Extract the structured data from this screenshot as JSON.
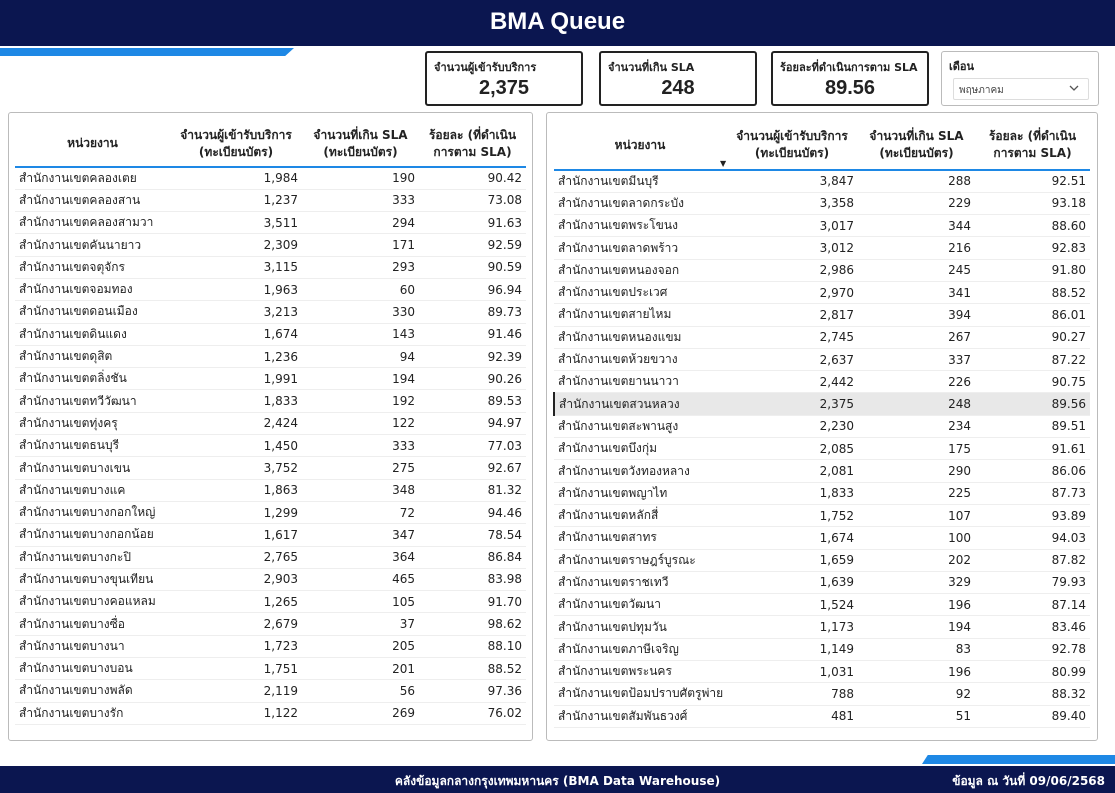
{
  "header": {
    "title": "BMA Queue"
  },
  "cards": {
    "served": {
      "label": "จำนวนผู้เข้ารับบริการ",
      "value": "2,375"
    },
    "over_sla": {
      "label": "จำนวนที่เกิน SLA",
      "value": "248"
    },
    "percent": {
      "label": "ร้อยละที่ดำเนินการตาม SLA",
      "value": "89.56"
    }
  },
  "filter": {
    "label": "เดือน",
    "value": "พฤษภาคม",
    "icon": "chevron-down-icon"
  },
  "table_headers": {
    "unit": "หน่วยงาน",
    "served_l1": "จำนวนผู้เข้ารับบริการ",
    "served_l2": "(ทะเบียนบัตร)",
    "over_l1": "จำนวนที่เกิน SLA",
    "over_l2": "(ทะเบียนบัตร)",
    "pct_l1": "ร้อยละ (ที่ดำเนิน",
    "pct_l2": "การตาม SLA)",
    "sort_indicator": "▼"
  },
  "left_table": {
    "rows": [
      [
        "สำนักงานเขตคลองเตย",
        "1,984",
        "190",
        "90.42"
      ],
      [
        "สำนักงานเขตคลองสาน",
        "1,237",
        "333",
        "73.08"
      ],
      [
        "สำนักงานเขตคลองสามวา",
        "3,511",
        "294",
        "91.63"
      ],
      [
        "สำนักงานเขตคันนายาว",
        "2,309",
        "171",
        "92.59"
      ],
      [
        "สำนักงานเขตจตุจักร",
        "3,115",
        "293",
        "90.59"
      ],
      [
        "สำนักงานเขตจอมทอง",
        "1,963",
        "60",
        "96.94"
      ],
      [
        "สำนักงานเขตดอนเมือง",
        "3,213",
        "330",
        "89.73"
      ],
      [
        "สำนักงานเขตดินแดง",
        "1,674",
        "143",
        "91.46"
      ],
      [
        "สำนักงานเขตดุสิต",
        "1,236",
        "94",
        "92.39"
      ],
      [
        "สำนักงานเขตตลิ่งชัน",
        "1,991",
        "194",
        "90.26"
      ],
      [
        "สำนักงานเขตทวีวัฒนา",
        "1,833",
        "192",
        "89.53"
      ],
      [
        "สำนักงานเขตทุ่งครุ",
        "2,424",
        "122",
        "94.97"
      ],
      [
        "สำนักงานเขตธนบุรี",
        "1,450",
        "333",
        "77.03"
      ],
      [
        "สำนักงานเขตบางเขน",
        "3,752",
        "275",
        "92.67"
      ],
      [
        "สำนักงานเขตบางแค",
        "1,863",
        "348",
        "81.32"
      ],
      [
        "สำนักงานเขตบางกอกใหญ่",
        "1,299",
        "72",
        "94.46"
      ],
      [
        "สำนักงานเขตบางกอกน้อย",
        "1,617",
        "347",
        "78.54"
      ],
      [
        "สำนักงานเขตบางกะปิ",
        "2,765",
        "364",
        "86.84"
      ],
      [
        "สำนักงานเขตบางขุนเทียน",
        "2,903",
        "465",
        "83.98"
      ],
      [
        "สำนักงานเขตบางคอแหลม",
        "1,265",
        "105",
        "91.70"
      ],
      [
        "สำนักงานเขตบางซื่อ",
        "2,679",
        "37",
        "98.62"
      ],
      [
        "สำนักงานเขตบางนา",
        "1,723",
        "205",
        "88.10"
      ],
      [
        "สำนักงานเขตบางบอน",
        "1,751",
        "201",
        "88.52"
      ],
      [
        "สำนักงานเขตบางพลัด",
        "2,119",
        "56",
        "97.36"
      ],
      [
        "สำนักงานเขตบางรัก",
        "1,122",
        "269",
        "76.02"
      ]
    ]
  },
  "right_table": {
    "highlight_row": 10,
    "rows": [
      [
        "สำนักงานเขตมีนบุรี",
        "3,847",
        "288",
        "92.51"
      ],
      [
        "สำนักงานเขตลาดกระบัง",
        "3,358",
        "229",
        "93.18"
      ],
      [
        "สำนักงานเขตพระโขนง",
        "3,017",
        "344",
        "88.60"
      ],
      [
        "สำนักงานเขตลาดพร้าว",
        "3,012",
        "216",
        "92.83"
      ],
      [
        "สำนักงานเขตหนองจอก",
        "2,986",
        "245",
        "91.80"
      ],
      [
        "สำนักงานเขตประเวศ",
        "2,970",
        "341",
        "88.52"
      ],
      [
        "สำนักงานเขตสายไหม",
        "2,817",
        "394",
        "86.01"
      ],
      [
        "สำนักงานเขตหนองแขม",
        "2,745",
        "267",
        "90.27"
      ],
      [
        "สำนักงานเขตห้วยขวาง",
        "2,637",
        "337",
        "87.22"
      ],
      [
        "สำนักงานเขตยานนาวา",
        "2,442",
        "226",
        "90.75"
      ],
      [
        "สำนักงานเขตสวนหลวง",
        "2,375",
        "248",
        "89.56"
      ],
      [
        "สำนักงานเขตสะพานสูง",
        "2,230",
        "234",
        "89.51"
      ],
      [
        "สำนักงานเขตบึงกุ่ม",
        "2,085",
        "175",
        "91.61"
      ],
      [
        "สำนักงานเขตวังทองหลาง",
        "2,081",
        "290",
        "86.06"
      ],
      [
        "สำนักงานเขตพญาไท",
        "1,833",
        "225",
        "87.73"
      ],
      [
        "สำนักงานเขตหลักสี่",
        "1,752",
        "107",
        "93.89"
      ],
      [
        "สำนักงานเขตสาทร",
        "1,674",
        "100",
        "94.03"
      ],
      [
        "สำนักงานเขตราษฎร์บูรณะ",
        "1,659",
        "202",
        "87.82"
      ],
      [
        "สำนักงานเขตราชเทวี",
        "1,639",
        "329",
        "79.93"
      ],
      [
        "สำนักงานเขตวัฒนา",
        "1,524",
        "196",
        "87.14"
      ],
      [
        "สำนักงานเขตปทุมวัน",
        "1,173",
        "194",
        "83.46"
      ],
      [
        "สำนักงานเขตภาษีเจริญ",
        "1,149",
        "83",
        "92.78"
      ],
      [
        "สำนักงานเขตพระนคร",
        "1,031",
        "196",
        "80.99"
      ],
      [
        "สำนักงานเขตป้อมปราบศัตรูพ่าย",
        "788",
        "92",
        "88.32"
      ],
      [
        "สำนักงานเขตสัมพันธวงศ์",
        "481",
        "51",
        "89.40"
      ]
    ]
  },
  "footer": {
    "source": "คลังข้อมูลกลางกรุงเทพมหานคร (BMA Data Warehouse)",
    "date": "ข้อมูล ณ วันที่ 09/06/2568"
  },
  "colors": {
    "navy": "#0b1650",
    "accent": "#1e88e5",
    "highlight_row": "#e8e8e8"
  }
}
